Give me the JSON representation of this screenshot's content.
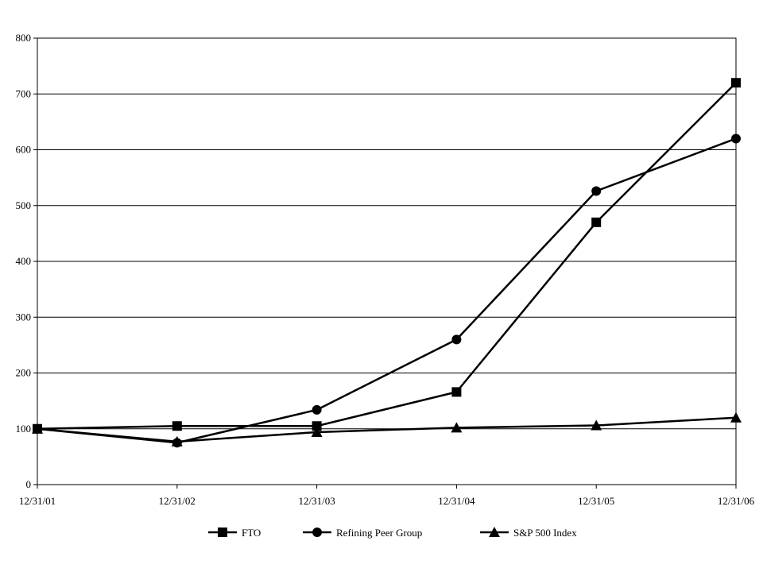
{
  "chart_data": {
    "type": "line",
    "title": "",
    "xlabel": "",
    "ylabel": "",
    "categories": [
      "12/31/01",
      "12/31/02",
      "12/31/03",
      "12/31/04",
      "12/31/05",
      "12/31/06"
    ],
    "ylim": [
      0,
      800
    ],
    "yticks": [
      0,
      100,
      200,
      300,
      400,
      500,
      600,
      700,
      800
    ],
    "grid": true,
    "legend_position": "bottom",
    "series": [
      {
        "name": "FTO",
        "marker": "square",
        "color": "#000000",
        "values": [
          100,
          105,
          105,
          166,
          470,
          720
        ]
      },
      {
        "name": "Refining Peer Group",
        "marker": "circle",
        "color": "#000000",
        "values": [
          100,
          75,
          134,
          260,
          526,
          620
        ]
      },
      {
        "name": "S&P 500 Index",
        "marker": "triangle",
        "color": "#000000",
        "values": [
          100,
          77,
          94,
          102,
          106,
          120
        ]
      }
    ]
  }
}
